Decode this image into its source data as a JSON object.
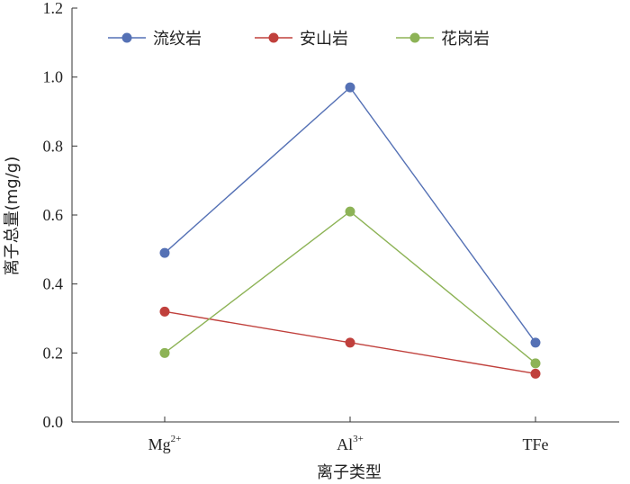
{
  "chart_data": {
    "type": "line",
    "xlabel": "离子类型",
    "ylabel": "离子总量(mg/g)",
    "ylim": [
      0,
      1.2
    ],
    "yticks": [
      0.0,
      0.2,
      0.4,
      0.6,
      0.8,
      1.0,
      1.2
    ],
    "ytick_labels": [
      "0.0",
      "0.2",
      "0.4",
      "0.6",
      "0.8",
      "1.0",
      "1.2"
    ],
    "categories": [
      {
        "base": "Mg",
        "sup": "2+"
      },
      {
        "base": "Al",
        "sup": "3+"
      },
      {
        "base": "TFe",
        "sup": ""
      }
    ],
    "grid": false,
    "legend_position": "top",
    "series": [
      {
        "name": "流纹岩",
        "color": "#5571b5",
        "values": [
          0.49,
          0.97,
          0.23
        ]
      },
      {
        "name": "安山岩",
        "color": "#c0403c",
        "values": [
          0.32,
          0.23,
          0.14
        ]
      },
      {
        "name": "花岗岩",
        "color": "#8db356",
        "values": [
          0.2,
          0.61,
          0.17
        ]
      }
    ]
  }
}
